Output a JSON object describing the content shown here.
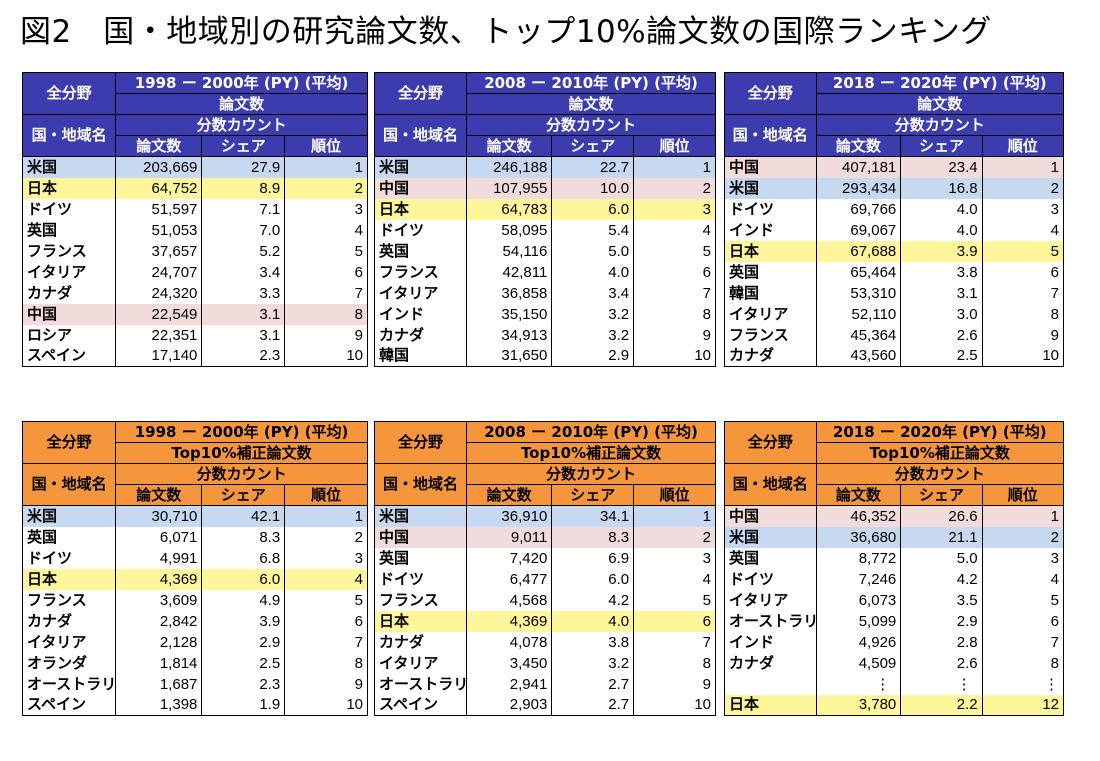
{
  "title": "図2　国・地域別の研究論文数、トップ10%論文数の国際ランキング",
  "common": {
    "field": "全分野",
    "country_header": "国・地域名",
    "count_method": "分数カウント",
    "col_papers": "論文数",
    "col_share": "シェア",
    "col_rank": "順位"
  },
  "colors": {
    "blue_header": "#3c3cae",
    "orange_header": "#f5963c",
    "us_highlight": "#c6d9f0",
    "japan_highlight": "#fff59a",
    "china_highlight": "#f2dcdb"
  },
  "panels": [
    {
      "period": "1998 ー 2000年 (PY) (平均)",
      "metric": "論文数",
      "rows": [
        {
          "country": "米国",
          "papers": "203,669",
          "share": "27.9",
          "rank": "1",
          "hl": "us"
        },
        {
          "country": "日本",
          "papers": "64,752",
          "share": "8.9",
          "rank": "2",
          "hl": "jp"
        },
        {
          "country": "ドイツ",
          "papers": "51,597",
          "share": "7.1",
          "rank": "3",
          "hl": ""
        },
        {
          "country": "英国",
          "papers": "51,053",
          "share": "7.0",
          "rank": "4",
          "hl": ""
        },
        {
          "country": "フランス",
          "papers": "37,657",
          "share": "5.2",
          "rank": "5",
          "hl": ""
        },
        {
          "country": "イタリア",
          "papers": "24,707",
          "share": "3.4",
          "rank": "6",
          "hl": ""
        },
        {
          "country": "カナダ",
          "papers": "24,320",
          "share": "3.3",
          "rank": "7",
          "hl": ""
        },
        {
          "country": "中国",
          "papers": "22,549",
          "share": "3.1",
          "rank": "8",
          "hl": "cn"
        },
        {
          "country": "ロシア",
          "papers": "22,351",
          "share": "3.1",
          "rank": "9",
          "hl": ""
        },
        {
          "country": "スペイン",
          "papers": "17,140",
          "share": "2.3",
          "rank": "10",
          "hl": ""
        }
      ]
    },
    {
      "period": "2008 ー 2010年 (PY) (平均)",
      "metric": "論文数",
      "rows": [
        {
          "country": "米国",
          "papers": "246,188",
          "share": "22.7",
          "rank": "1",
          "hl": "us"
        },
        {
          "country": "中国",
          "papers": "107,955",
          "share": "10.0",
          "rank": "2",
          "hl": "cn"
        },
        {
          "country": "日本",
          "papers": "64,783",
          "share": "6.0",
          "rank": "3",
          "hl": "jp"
        },
        {
          "country": "ドイツ",
          "papers": "58,095",
          "share": "5.4",
          "rank": "4",
          "hl": ""
        },
        {
          "country": "英国",
          "papers": "54,116",
          "share": "5.0",
          "rank": "5",
          "hl": ""
        },
        {
          "country": "フランス",
          "papers": "42,811",
          "share": "4.0",
          "rank": "6",
          "hl": ""
        },
        {
          "country": "イタリア",
          "papers": "36,858",
          "share": "3.4",
          "rank": "7",
          "hl": ""
        },
        {
          "country": "インド",
          "papers": "35,150",
          "share": "3.2",
          "rank": "8",
          "hl": ""
        },
        {
          "country": "カナダ",
          "papers": "34,913",
          "share": "3.2",
          "rank": "9",
          "hl": ""
        },
        {
          "country": "韓国",
          "papers": "31,650",
          "share": "2.9",
          "rank": "10",
          "hl": ""
        }
      ]
    },
    {
      "period": "2018 ー 2020年 (PY) (平均)",
      "metric": "論文数",
      "rows": [
        {
          "country": "中国",
          "papers": "407,181",
          "share": "23.4",
          "rank": "1",
          "hl": "cn"
        },
        {
          "country": "米国",
          "papers": "293,434",
          "share": "16.8",
          "rank": "2",
          "hl": "us"
        },
        {
          "country": "ドイツ",
          "papers": "69,766",
          "share": "4.0",
          "rank": "3",
          "hl": ""
        },
        {
          "country": "インド",
          "papers": "69,067",
          "share": "4.0",
          "rank": "4",
          "hl": ""
        },
        {
          "country": "日本",
          "papers": "67,688",
          "share": "3.9",
          "rank": "5",
          "hl": "jp"
        },
        {
          "country": "英国",
          "papers": "65,464",
          "share": "3.8",
          "rank": "6",
          "hl": ""
        },
        {
          "country": "韓国",
          "papers": "53,310",
          "share": "3.1",
          "rank": "7",
          "hl": ""
        },
        {
          "country": "イタリア",
          "papers": "52,110",
          "share": "3.0",
          "rank": "8",
          "hl": ""
        },
        {
          "country": "フランス",
          "papers": "45,364",
          "share": "2.6",
          "rank": "9",
          "hl": ""
        },
        {
          "country": "カナダ",
          "papers": "43,560",
          "share": "2.5",
          "rank": "10",
          "hl": ""
        }
      ]
    },
    {
      "period": "1998 ー 2000年 (PY) (平均)",
      "metric": "Top10%補正論文数",
      "rows": [
        {
          "country": "米国",
          "papers": "30,710",
          "share": "42.1",
          "rank": "1",
          "hl": "us"
        },
        {
          "country": "英国",
          "papers": "6,071",
          "share": "8.3",
          "rank": "2",
          "hl": ""
        },
        {
          "country": "ドイツ",
          "papers": "4,991",
          "share": "6.8",
          "rank": "3",
          "hl": ""
        },
        {
          "country": "日本",
          "papers": "4,369",
          "share": "6.0",
          "rank": "4",
          "hl": "jp"
        },
        {
          "country": "フランス",
          "papers": "3,609",
          "share": "4.9",
          "rank": "5",
          "hl": ""
        },
        {
          "country": "カナダ",
          "papers": "2,842",
          "share": "3.9",
          "rank": "6",
          "hl": ""
        },
        {
          "country": "イタリア",
          "papers": "2,128",
          "share": "2.9",
          "rank": "7",
          "hl": ""
        },
        {
          "country": "オランダ",
          "papers": "1,814",
          "share": "2.5",
          "rank": "8",
          "hl": ""
        },
        {
          "country": "オーストラリア",
          "papers": "1,687",
          "share": "2.3",
          "rank": "9",
          "hl": "",
          "small": true
        },
        {
          "country": "スペイン",
          "papers": "1,398",
          "share": "1.9",
          "rank": "10",
          "hl": ""
        }
      ]
    },
    {
      "period": "2008 ー 2010年 (PY) (平均)",
      "metric": "Top10%補正論文数",
      "rows": [
        {
          "country": "米国",
          "papers": "36,910",
          "share": "34.1",
          "rank": "1",
          "hl": "us"
        },
        {
          "country": "中国",
          "papers": "9,011",
          "share": "8.3",
          "rank": "2",
          "hl": "cn"
        },
        {
          "country": "英国",
          "papers": "7,420",
          "share": "6.9",
          "rank": "3",
          "hl": ""
        },
        {
          "country": "ドイツ",
          "papers": "6,477",
          "share": "6.0",
          "rank": "4",
          "hl": ""
        },
        {
          "country": "フランス",
          "papers": "4,568",
          "share": "4.2",
          "rank": "5",
          "hl": ""
        },
        {
          "country": "日本",
          "papers": "4,369",
          "share": "4.0",
          "rank": "6",
          "hl": "jp"
        },
        {
          "country": "カナダ",
          "papers": "4,078",
          "share": "3.8",
          "rank": "7",
          "hl": ""
        },
        {
          "country": "イタリア",
          "papers": "3,450",
          "share": "3.2",
          "rank": "8",
          "hl": ""
        },
        {
          "country": "オーストラリア",
          "papers": "2,941",
          "share": "2.7",
          "rank": "9",
          "hl": "",
          "small": true
        },
        {
          "country": "スペイン",
          "papers": "2,903",
          "share": "2.7",
          "rank": "10",
          "hl": ""
        }
      ]
    },
    {
      "period": "2018 ー 2020年 (PY) (平均)",
      "metric": "Top10%補正論文数",
      "rows": [
        {
          "country": "中国",
          "papers": "46,352",
          "share": "26.6",
          "rank": "1",
          "hl": "cn"
        },
        {
          "country": "米国",
          "papers": "36,680",
          "share": "21.1",
          "rank": "2",
          "hl": "us"
        },
        {
          "country": "英国",
          "papers": "8,772",
          "share": "5.0",
          "rank": "3",
          "hl": ""
        },
        {
          "country": "ドイツ",
          "papers": "7,246",
          "share": "4.2",
          "rank": "4",
          "hl": ""
        },
        {
          "country": "イタリア",
          "papers": "6,073",
          "share": "3.5",
          "rank": "5",
          "hl": ""
        },
        {
          "country": "オーストラリア",
          "papers": "5,099",
          "share": "2.9",
          "rank": "6",
          "hl": "",
          "small": true
        },
        {
          "country": "インド",
          "papers": "4,926",
          "share": "2.8",
          "rank": "7",
          "hl": ""
        },
        {
          "country": "カナダ",
          "papers": "4,509",
          "share": "2.6",
          "rank": "8",
          "hl": ""
        },
        {
          "country": "",
          "papers": "⋮",
          "share": "⋮",
          "rank": "⋮",
          "hl": "",
          "dots": true
        },
        {
          "country": "日本",
          "papers": "3,780",
          "share": "2.2",
          "rank": "12",
          "hl": "jp"
        }
      ]
    }
  ]
}
